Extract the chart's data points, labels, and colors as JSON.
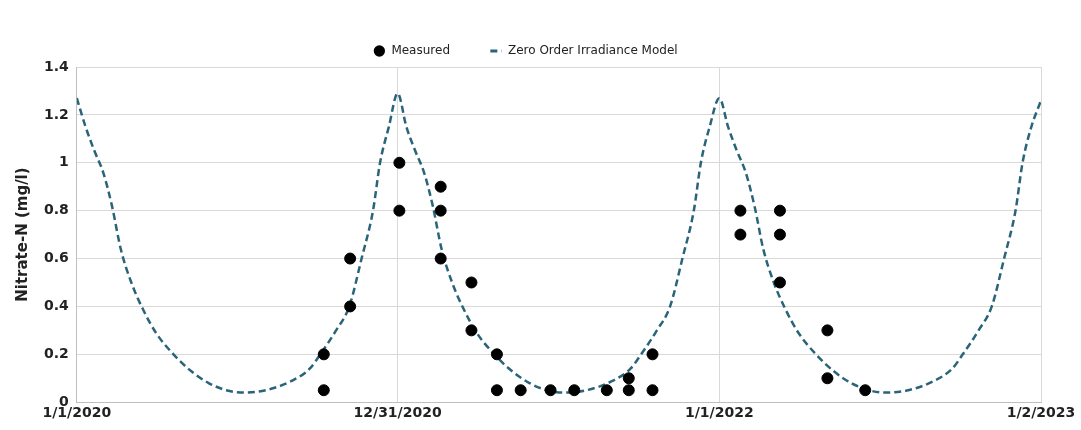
{
  "chart_data": {
    "type": "scatter",
    "ylabel": "Nitrate-N (mg/l)",
    "xlim": [
      "2020-01-01",
      "2023-01-02"
    ],
    "xticks": [
      {
        "value": "2020-01-01",
        "label": "1/1/2020"
      },
      {
        "value": "2020-12-31",
        "label": "12/31/2020"
      },
      {
        "value": "2022-01-01",
        "label": "1/1/2022"
      },
      {
        "value": "2023-01-02",
        "label": "1/2/2023"
      }
    ],
    "ylim": [
      0,
      1.4
    ],
    "yticks": [
      0,
      0.2,
      0.4,
      0.6,
      0.8,
      1,
      1.2,
      1.4
    ],
    "grid": true,
    "legend": "top",
    "series": [
      {
        "name": "Measured",
        "type": "scatter",
        "color": "#000000",
        "marker": "circle",
        "x": [
          "2020-10-08",
          "2020-10-08",
          "2020-11-07",
          "2020-11-07",
          "2021-01-02",
          "2021-01-02",
          "2021-02-18",
          "2021-02-18",
          "2021-02-18",
          "2021-03-25",
          "2021-03-25",
          "2021-04-23",
          "2021-04-23",
          "2021-05-20",
          "2021-06-23",
          "2021-07-20",
          "2021-08-26",
          "2021-09-20",
          "2021-09-20",
          "2021-10-17",
          "2021-10-17",
          "2022-01-25",
          "2022-01-25",
          "2022-03-11",
          "2022-03-11",
          "2022-03-11",
          "2022-05-04",
          "2022-05-04",
          "2022-06-16"
        ],
        "values": [
          0.2,
          0.05,
          0.6,
          0.4,
          1,
          0.8,
          0.9,
          0.8,
          0.6,
          0.5,
          0.3,
          0.2,
          0.05,
          0.05,
          0.05,
          0.05,
          0.05,
          0.1,
          0.05,
          0.2,
          0.05,
          0.8,
          0.7,
          0.8,
          0.7,
          0.5,
          0.3,
          0.1,
          0.05
        ]
      },
      {
        "name": "Zero Order Irradiance Model",
        "type": "line",
        "color": "#2a6478",
        "line_style": "dashed",
        "marker": "none",
        "x": [
          "2020-01-01",
          "2020-01-11",
          "2020-01-21",
          "2020-01-31",
          "2020-02-10",
          "2020-02-20",
          "2020-03-03",
          "2020-03-16",
          "2020-03-31",
          "2020-04-20",
          "2020-05-10",
          "2020-05-30",
          "2020-06-19",
          "2020-07-09",
          "2020-08-03",
          "2020-09-02",
          "2020-09-22",
          "2020-10-04",
          "2020-10-22",
          "2020-11-06",
          "2020-11-20",
          "2020-12-03",
          "2020-12-11",
          "2020-12-21",
          "2020-12-31",
          "2021-01-10",
          "2021-01-20",
          "2021-01-30",
          "2021-02-09",
          "2021-02-19",
          "2021-03-03",
          "2021-03-16",
          "2021-03-31",
          "2021-04-20",
          "2021-05-10",
          "2021-05-30",
          "2021-06-19",
          "2021-07-09",
          "2021-08-03",
          "2021-09-02",
          "2021-09-22",
          "2021-10-04",
          "2021-10-22",
          "2021-11-06",
          "2021-11-20",
          "2021-12-03",
          "2021-12-11",
          "2021-12-21",
          "2022-01-01",
          "2022-01-11",
          "2022-01-21",
          "2022-01-31",
          "2022-02-10",
          "2022-02-20",
          "2022-03-04",
          "2022-03-17",
          "2022-04-01",
          "2022-04-21",
          "2022-05-11",
          "2022-05-31",
          "2022-06-20",
          "2022-07-10",
          "2022-08-04",
          "2022-09-03",
          "2022-09-23",
          "2022-10-05",
          "2022-10-23",
          "2022-11-07",
          "2022-11-21",
          "2022-12-04",
          "2022-12-12",
          "2022-12-22",
          "2023-01-02"
        ],
        "values": [
          1.27,
          1.15,
          1.05,
          0.96,
          0.82,
          0.64,
          0.5,
          0.39,
          0.29,
          0.2,
          0.13,
          0.08,
          0.05,
          0.04,
          0.05,
          0.09,
          0.14,
          0.2,
          0.3,
          0.4,
          0.6,
          0.8,
          1,
          1.15,
          1.29,
          1.15,
          1.05,
          0.96,
          0.82,
          0.64,
          0.5,
          0.39,
          0.29,
          0.2,
          0.13,
          0.08,
          0.05,
          0.04,
          0.05,
          0.09,
          0.14,
          0.2,
          0.3,
          0.4,
          0.6,
          0.8,
          1,
          1.15,
          1.27,
          1.15,
          1.05,
          0.96,
          0.82,
          0.64,
          0.5,
          0.39,
          0.29,
          0.2,
          0.13,
          0.08,
          0.05,
          0.04,
          0.05,
          0.09,
          0.14,
          0.2,
          0.3,
          0.4,
          0.6,
          0.8,
          1,
          1.15,
          1.26
        ]
      }
    ]
  }
}
